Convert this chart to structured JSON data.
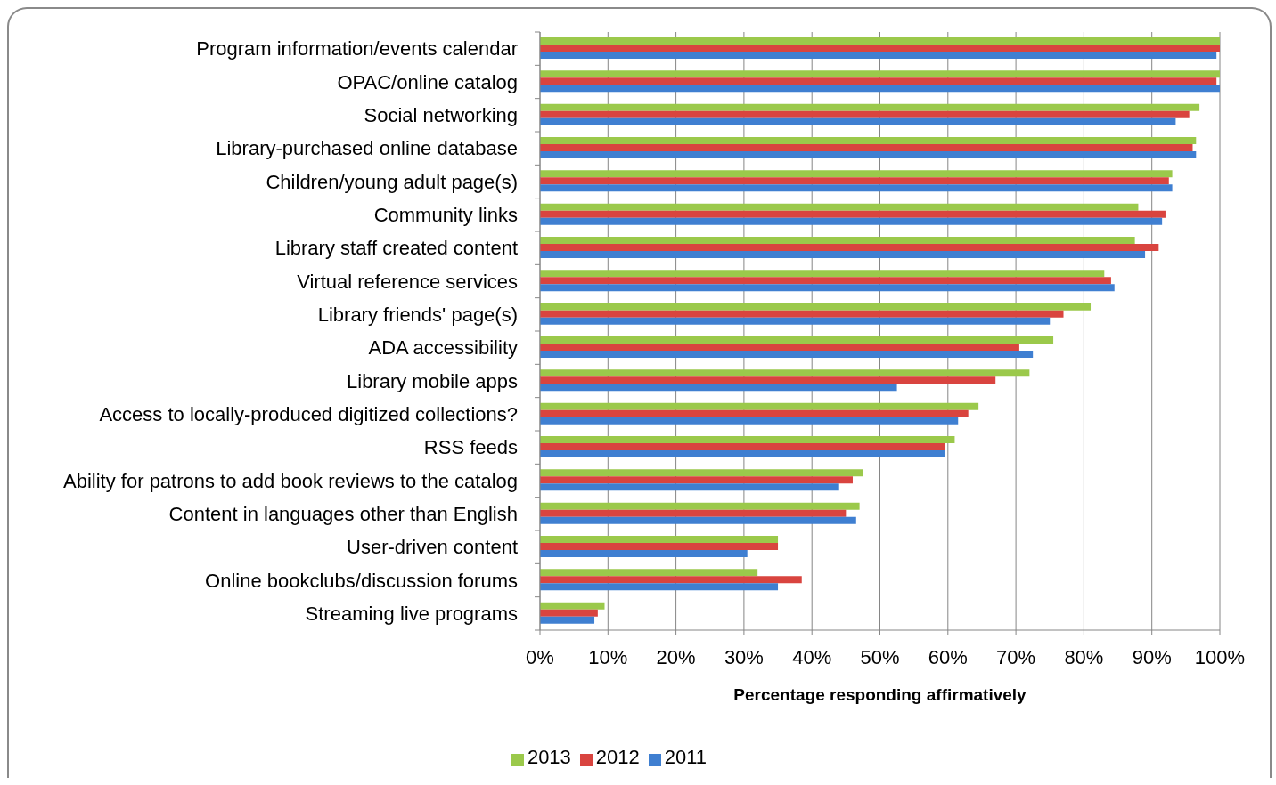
{
  "chart_data": {
    "type": "bar",
    "orientation": "horizontal",
    "categories": [
      "Program information/events calendar",
      "OPAC/online catalog",
      "Social networking",
      "Library-purchased online database",
      "Children/young adult page(s)",
      "Community links",
      "Library staff created content",
      "Virtual reference services",
      "Library friends' page(s)",
      "ADA accessibility",
      "Library mobile apps",
      "Access to locally-produced digitized collections?",
      "RSS feeds",
      "Ability for patrons to add book reviews to the catalog",
      "Content in languages other than English",
      "User-driven content",
      "Online bookclubs/discussion forums",
      "Streaming live programs"
    ],
    "series": [
      {
        "name": "2013",
        "color": "#9bc94b",
        "values": [
          100,
          100,
          97,
          96.5,
          93,
          88,
          87.5,
          83,
          81,
          75.5,
          72,
          64.5,
          61,
          47.5,
          47,
          35,
          32,
          9.5
        ]
      },
      {
        "name": "2012",
        "color": "#d9443f",
        "values": [
          100,
          99.5,
          95.5,
          96,
          92.5,
          92,
          91,
          84,
          77,
          70.5,
          67,
          63,
          59.5,
          46,
          45,
          35,
          38.5,
          8.5
        ]
      },
      {
        "name": "2011",
        "color": "#3f7fd1",
        "values": [
          99.5,
          100,
          93.5,
          96.5,
          93,
          91.5,
          89,
          84.5,
          75,
          72.5,
          52.5,
          61.5,
          59.5,
          44,
          46.5,
          30.5,
          35,
          8
        ]
      }
    ],
    "xlim": [
      0,
      100
    ],
    "xticks": [
      {
        "value": 0,
        "label": "0%"
      },
      {
        "value": 10,
        "label": "10%"
      },
      {
        "value": 20,
        "label": "20%"
      },
      {
        "value": 30,
        "label": "30%"
      },
      {
        "value": 40,
        "label": "40%"
      },
      {
        "value": 50,
        "label": "50%"
      },
      {
        "value": 60,
        "label": "60%"
      },
      {
        "value": 70,
        "label": "70%"
      },
      {
        "value": 80,
        "label": "80%"
      },
      {
        "value": 90,
        "label": "90%"
      },
      {
        "value": 100,
        "label": "100%"
      }
    ],
    "xlabel": "Percentage responding affirmatively",
    "grid": "x",
    "legend": "bottom"
  }
}
